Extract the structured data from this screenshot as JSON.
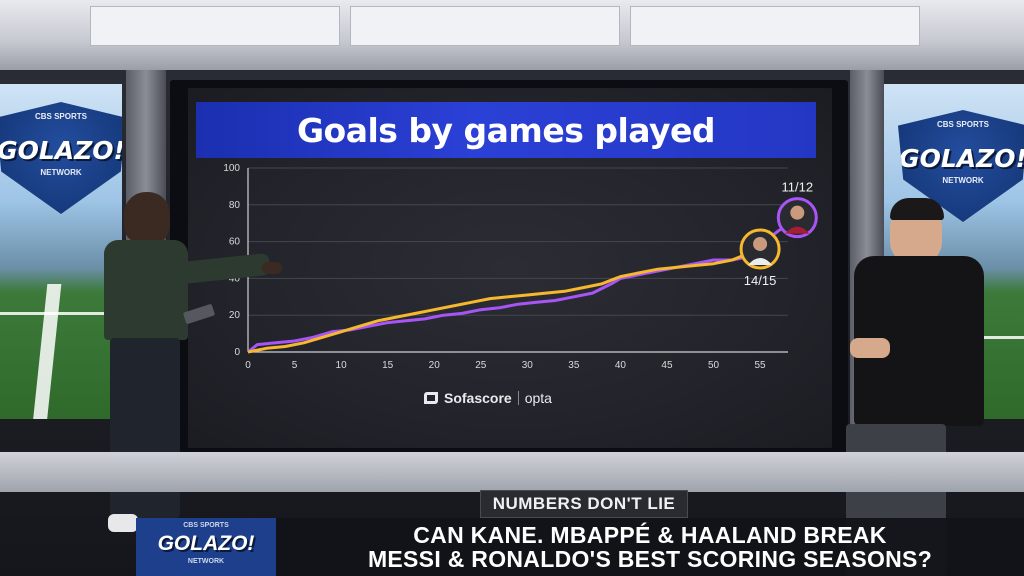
{
  "broadcast": {
    "network_logo": {
      "brand": "CBS SPORTS",
      "name": "GOLAZO!",
      "sub": "NETWORK"
    }
  },
  "video_wall": {
    "title": "Goals by games played",
    "source": {
      "left": "Sofascore",
      "right": "opta"
    }
  },
  "chart_data": {
    "type": "line",
    "title": "Goals by games played",
    "xlabel": "",
    "ylabel": "",
    "xlim": [
      0,
      58
    ],
    "ylim": [
      0,
      100
    ],
    "x_ticks": [
      0,
      5,
      10,
      15,
      20,
      25,
      30,
      35,
      40,
      45,
      50,
      55
    ],
    "y_ticks": [
      0,
      20,
      40,
      60,
      80,
      100
    ],
    "grid": true,
    "series": [
      {
        "player": "Messi",
        "color": "#a855f7",
        "points": [
          [
            0,
            0
          ],
          [
            1,
            4
          ],
          [
            3,
            5
          ],
          [
            5,
            6
          ],
          [
            7,
            8
          ],
          [
            9,
            11
          ],
          [
            11,
            12
          ],
          [
            13,
            14
          ],
          [
            15,
            16
          ],
          [
            17,
            17
          ],
          [
            19,
            18
          ],
          [
            21,
            20
          ],
          [
            23,
            21
          ],
          [
            25,
            23
          ],
          [
            27,
            24
          ],
          [
            29,
            26
          ],
          [
            31,
            27
          ],
          [
            33,
            28
          ],
          [
            35,
            30
          ],
          [
            37,
            32
          ],
          [
            39,
            37
          ],
          [
            40,
            40
          ],
          [
            42,
            42
          ],
          [
            44,
            44
          ],
          [
            46,
            46
          ],
          [
            48,
            48
          ],
          [
            50,
            50
          ],
          [
            52,
            50
          ],
          [
            53,
            51
          ],
          [
            54,
            54
          ],
          [
            55,
            58
          ],
          [
            56,
            62
          ],
          [
            57,
            66
          ],
          [
            58,
            69
          ],
          [
            59,
            73
          ]
        ],
        "annotation": "11/12"
      },
      {
        "player": "Ronaldo",
        "color": "#f5b82e",
        "points": [
          [
            0,
            0
          ],
          [
            2,
            2
          ],
          [
            4,
            3
          ],
          [
            6,
            5
          ],
          [
            8,
            8
          ],
          [
            10,
            11
          ],
          [
            12,
            14
          ],
          [
            14,
            17
          ],
          [
            16,
            19
          ],
          [
            18,
            21
          ],
          [
            20,
            23
          ],
          [
            22,
            25
          ],
          [
            24,
            27
          ],
          [
            26,
            29
          ],
          [
            28,
            30
          ],
          [
            30,
            31
          ],
          [
            32,
            32
          ],
          [
            34,
            33
          ],
          [
            36,
            35
          ],
          [
            38,
            37
          ],
          [
            39,
            39
          ],
          [
            40,
            41
          ],
          [
            42,
            43
          ],
          [
            44,
            45
          ],
          [
            46,
            46
          ],
          [
            48,
            47
          ],
          [
            50,
            48
          ],
          [
            52,
            50
          ],
          [
            53,
            52
          ],
          [
            54,
            53
          ],
          [
            55,
            56
          ]
        ],
        "annotation": "14/15"
      }
    ]
  },
  "lower_third": {
    "tag": "NUMBERS DON'T LIE",
    "headline_line1": "CAN KANE. MBAPPÉ & HAALAND BREAK",
    "headline_line2": "MESSI & RONALDO'S BEST SCORING SEASONS?",
    "logo_brand": "CBS SPORTS",
    "logo_name": "GOLAZO!",
    "logo_sub": "NETWORK"
  }
}
